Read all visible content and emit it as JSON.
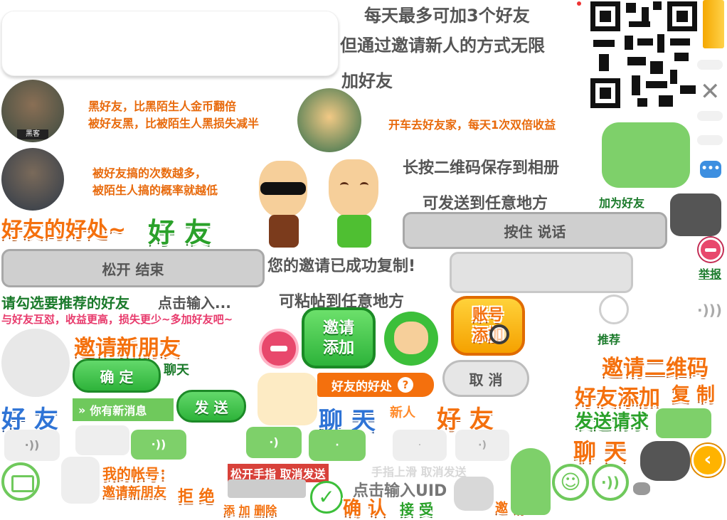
{
  "info": {
    "line1": "每天最多可加3个好友",
    "line2": "但通过邀请新人的方式无限",
    "line3": "加好友"
  },
  "benefits": {
    "black_friend_1": "黑好友，比黑陌生人金币翻倍",
    "black_friend_2": "被好友黑，比被陌生人黑损失减半",
    "prank_1": "被好友搞的次数越多，",
    "prank_2": "被陌生人搞的概率就越低",
    "drive": "开车去好友家，每天1次双倍收益",
    "avatar_badge": "黑客"
  },
  "headings": {
    "friend_benefits": "好友的好处~",
    "friend_big": "好 友",
    "hold_qr": "长按二维码保存到相册",
    "send_anywhere": "可发送到任意地方",
    "add_as_friend": "加为好友",
    "copied": "您的邀请已成功复制!",
    "paste_anywhere": "可粘帖到任意地方",
    "select_recommended": "请勾选要推荐的好友",
    "click_input": "点击输入...",
    "pink_tip": "与好友互怼，收益更高，损失更少~多加好友吧~",
    "invite_new": "邀请新朋友",
    "chat_small": "聊天",
    "recommend": "推荐",
    "invite_qr": "邀请二维码",
    "friend_add": "好友添加",
    "copy": "复 制",
    "send_request": "发送请求",
    "chat_big": "聊 天",
    "friend_big_blue": "好 友",
    "chat_blue": "聊 天",
    "new_person": "新人",
    "friend_orange": "好 友",
    "my_account": "我的帐号：",
    "invite_friend": "邀请新朋友",
    "reject": "拒 绝",
    "release_cancel": "松开手指 取消发送",
    "swipe_cancel": "手指上滑 取消发送",
    "click_uid": "点击输入UID",
    "add": "添 加",
    "delete": "删除",
    "confirm_big": "确 认",
    "accept": "接 受",
    "invite_small": "邀 请",
    "report": "举报"
  },
  "buttons": {
    "hold_talk": "按住 说话",
    "release_end": "松开 结束",
    "invite": "邀请",
    "add_label": "添加",
    "account_add_1": "账号",
    "account_add_2": "添加",
    "ok": "确 定",
    "send": "发 送",
    "new_message": "你有新消息",
    "friend_benefit_tag": "好友的好处",
    "cancel": "取 消"
  },
  "colors": {
    "orange": "#f4700d",
    "green": "#2aa12a",
    "blue": "#2f74d6",
    "gray": "#cfcfcf",
    "pink": "#e83a6c",
    "bubble_green": "#7ed06a"
  },
  "icons": [
    "close-icon",
    "chat-dots-icon",
    "minus-icon",
    "voice-icon",
    "keyboard-icon",
    "smile-icon",
    "check-icon",
    "back-arrow-icon",
    "question-icon",
    "magnifier-icon",
    "cow-icon"
  ]
}
